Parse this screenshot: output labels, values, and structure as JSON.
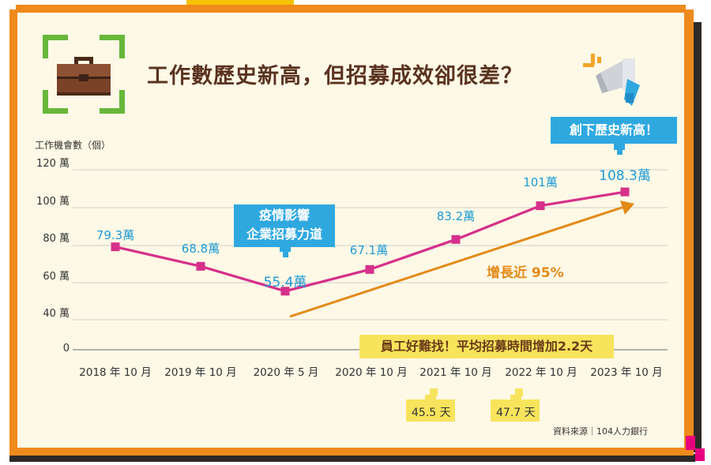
{
  "title": "工作數歷史新高，但招募成效卻很差？",
  "yaxis_title": "工作機會數（個）",
  "source": "資料來源｜104人力銀行",
  "callouts": {
    "pandemic": [
      "疫情影響",
      "企業招募力道"
    ],
    "record": "創下歷史新高！",
    "hiring": "員工好難找！平均招募時間增加2.2天",
    "growth": "增長近 95%",
    "days_2021": "45.5 天",
    "days_2022": "47.7 天"
  },
  "icons": {
    "briefcase": "briefcase-icon",
    "megaphone": "megaphone-icon"
  },
  "colors": {
    "line": "#d6308a",
    "label": "#1f9ad6",
    "arrow": "#e48a18",
    "bubble": "#2fa8e0",
    "frame": "#ef8a1c",
    "grid": "#cfcfcf"
  },
  "chart_data": {
    "type": "line",
    "ylabel": "工作機會數（個）",
    "ylim": [
      0,
      120
    ],
    "y_ticks": [
      "0",
      "40 萬",
      "60 萬",
      "80 萬",
      "100 萬",
      "120 萬"
    ],
    "categories": [
      "2018 年 10 月",
      "2019 年 10 月",
      "2020 年 5 月",
      "2020 年 10 月",
      "2021 年 10 月",
      "2022 年 10 月",
      "2023 年 10 月"
    ],
    "values": [
      79.3,
      68.8,
      55.4,
      67.1,
      83.2,
      101,
      108.3
    ],
    "data_labels": [
      "79.3萬",
      "68.8萬",
      "55.4萬",
      "67.1萬",
      "83.2萬",
      "101萬",
      "108.3萬"
    ],
    "grid": true
  }
}
